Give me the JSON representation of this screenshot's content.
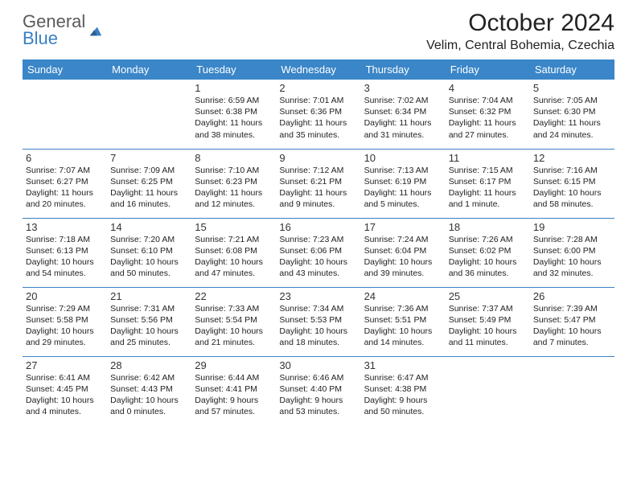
{
  "logo": {
    "word1": "General",
    "word2": "Blue"
  },
  "title": "October 2024",
  "location": "Velim, Central Bohemia, Czechia",
  "colors": {
    "header_bg": "#3a86c8",
    "header_text": "#ffffff",
    "border": "#3a7fc4",
    "logo_gray": "#5a5a5a",
    "logo_blue": "#3a7fc4"
  },
  "weekdays": [
    "Sunday",
    "Monday",
    "Tuesday",
    "Wednesday",
    "Thursday",
    "Friday",
    "Saturday"
  ],
  "weeks": [
    [
      null,
      null,
      {
        "d": "1",
        "sr": "Sunrise: 6:59 AM",
        "ss": "Sunset: 6:38 PM",
        "dl1": "Daylight: 11 hours",
        "dl2": "and 38 minutes."
      },
      {
        "d": "2",
        "sr": "Sunrise: 7:01 AM",
        "ss": "Sunset: 6:36 PM",
        "dl1": "Daylight: 11 hours",
        "dl2": "and 35 minutes."
      },
      {
        "d": "3",
        "sr": "Sunrise: 7:02 AM",
        "ss": "Sunset: 6:34 PM",
        "dl1": "Daylight: 11 hours",
        "dl2": "and 31 minutes."
      },
      {
        "d": "4",
        "sr": "Sunrise: 7:04 AM",
        "ss": "Sunset: 6:32 PM",
        "dl1": "Daylight: 11 hours",
        "dl2": "and 27 minutes."
      },
      {
        "d": "5",
        "sr": "Sunrise: 7:05 AM",
        "ss": "Sunset: 6:30 PM",
        "dl1": "Daylight: 11 hours",
        "dl2": "and 24 minutes."
      }
    ],
    [
      {
        "d": "6",
        "sr": "Sunrise: 7:07 AM",
        "ss": "Sunset: 6:27 PM",
        "dl1": "Daylight: 11 hours",
        "dl2": "and 20 minutes."
      },
      {
        "d": "7",
        "sr": "Sunrise: 7:09 AM",
        "ss": "Sunset: 6:25 PM",
        "dl1": "Daylight: 11 hours",
        "dl2": "and 16 minutes."
      },
      {
        "d": "8",
        "sr": "Sunrise: 7:10 AM",
        "ss": "Sunset: 6:23 PM",
        "dl1": "Daylight: 11 hours",
        "dl2": "and 12 minutes."
      },
      {
        "d": "9",
        "sr": "Sunrise: 7:12 AM",
        "ss": "Sunset: 6:21 PM",
        "dl1": "Daylight: 11 hours",
        "dl2": "and 9 minutes."
      },
      {
        "d": "10",
        "sr": "Sunrise: 7:13 AM",
        "ss": "Sunset: 6:19 PM",
        "dl1": "Daylight: 11 hours",
        "dl2": "and 5 minutes."
      },
      {
        "d": "11",
        "sr": "Sunrise: 7:15 AM",
        "ss": "Sunset: 6:17 PM",
        "dl1": "Daylight: 11 hours",
        "dl2": "and 1 minute."
      },
      {
        "d": "12",
        "sr": "Sunrise: 7:16 AM",
        "ss": "Sunset: 6:15 PM",
        "dl1": "Daylight: 10 hours",
        "dl2": "and 58 minutes."
      }
    ],
    [
      {
        "d": "13",
        "sr": "Sunrise: 7:18 AM",
        "ss": "Sunset: 6:13 PM",
        "dl1": "Daylight: 10 hours",
        "dl2": "and 54 minutes."
      },
      {
        "d": "14",
        "sr": "Sunrise: 7:20 AM",
        "ss": "Sunset: 6:10 PM",
        "dl1": "Daylight: 10 hours",
        "dl2": "and 50 minutes."
      },
      {
        "d": "15",
        "sr": "Sunrise: 7:21 AM",
        "ss": "Sunset: 6:08 PM",
        "dl1": "Daylight: 10 hours",
        "dl2": "and 47 minutes."
      },
      {
        "d": "16",
        "sr": "Sunrise: 7:23 AM",
        "ss": "Sunset: 6:06 PM",
        "dl1": "Daylight: 10 hours",
        "dl2": "and 43 minutes."
      },
      {
        "d": "17",
        "sr": "Sunrise: 7:24 AM",
        "ss": "Sunset: 6:04 PM",
        "dl1": "Daylight: 10 hours",
        "dl2": "and 39 minutes."
      },
      {
        "d": "18",
        "sr": "Sunrise: 7:26 AM",
        "ss": "Sunset: 6:02 PM",
        "dl1": "Daylight: 10 hours",
        "dl2": "and 36 minutes."
      },
      {
        "d": "19",
        "sr": "Sunrise: 7:28 AM",
        "ss": "Sunset: 6:00 PM",
        "dl1": "Daylight: 10 hours",
        "dl2": "and 32 minutes."
      }
    ],
    [
      {
        "d": "20",
        "sr": "Sunrise: 7:29 AM",
        "ss": "Sunset: 5:58 PM",
        "dl1": "Daylight: 10 hours",
        "dl2": "and 29 minutes."
      },
      {
        "d": "21",
        "sr": "Sunrise: 7:31 AM",
        "ss": "Sunset: 5:56 PM",
        "dl1": "Daylight: 10 hours",
        "dl2": "and 25 minutes."
      },
      {
        "d": "22",
        "sr": "Sunrise: 7:33 AM",
        "ss": "Sunset: 5:54 PM",
        "dl1": "Daylight: 10 hours",
        "dl2": "and 21 minutes."
      },
      {
        "d": "23",
        "sr": "Sunrise: 7:34 AM",
        "ss": "Sunset: 5:53 PM",
        "dl1": "Daylight: 10 hours",
        "dl2": "and 18 minutes."
      },
      {
        "d": "24",
        "sr": "Sunrise: 7:36 AM",
        "ss": "Sunset: 5:51 PM",
        "dl1": "Daylight: 10 hours",
        "dl2": "and 14 minutes."
      },
      {
        "d": "25",
        "sr": "Sunrise: 7:37 AM",
        "ss": "Sunset: 5:49 PM",
        "dl1": "Daylight: 10 hours",
        "dl2": "and 11 minutes."
      },
      {
        "d": "26",
        "sr": "Sunrise: 7:39 AM",
        "ss": "Sunset: 5:47 PM",
        "dl1": "Daylight: 10 hours",
        "dl2": "and 7 minutes."
      }
    ],
    [
      {
        "d": "27",
        "sr": "Sunrise: 6:41 AM",
        "ss": "Sunset: 4:45 PM",
        "dl1": "Daylight: 10 hours",
        "dl2": "and 4 minutes."
      },
      {
        "d": "28",
        "sr": "Sunrise: 6:42 AM",
        "ss": "Sunset: 4:43 PM",
        "dl1": "Daylight: 10 hours",
        "dl2": "and 0 minutes."
      },
      {
        "d": "29",
        "sr": "Sunrise: 6:44 AM",
        "ss": "Sunset: 4:41 PM",
        "dl1": "Daylight: 9 hours",
        "dl2": "and 57 minutes."
      },
      {
        "d": "30",
        "sr": "Sunrise: 6:46 AM",
        "ss": "Sunset: 4:40 PM",
        "dl1": "Daylight: 9 hours",
        "dl2": "and 53 minutes."
      },
      {
        "d": "31",
        "sr": "Sunrise: 6:47 AM",
        "ss": "Sunset: 4:38 PM",
        "dl1": "Daylight: 9 hours",
        "dl2": "and 50 minutes."
      },
      null,
      null
    ]
  ]
}
